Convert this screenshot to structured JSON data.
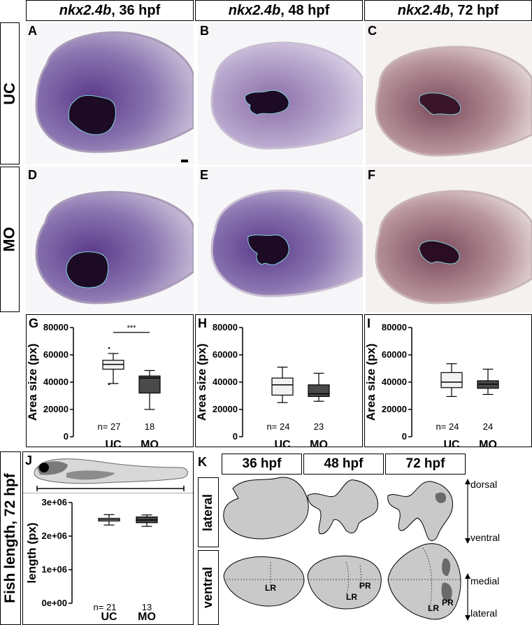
{
  "headers": [
    {
      "gene": "nkx2.4b",
      "stage": ", 36 hpf"
    },
    {
      "gene": "nkx2.4b",
      "stage": ", 48 hpf"
    },
    {
      "gene": "nkx2.4b",
      "stage": ", 72 hpf"
    }
  ],
  "row_labels": {
    "uc": "UC",
    "mo": "MO"
  },
  "panel_letters": {
    "A": "A",
    "B": "B",
    "C": "C",
    "D": "D",
    "E": "E",
    "F": "F",
    "G": "G",
    "H": "H",
    "I": "I",
    "J": "J",
    "K": "K"
  },
  "chart_data": [
    {
      "type": "box",
      "panel": "G",
      "ylabel": "Area size (px)",
      "ylim": [
        0,
        80000
      ],
      "yticks": [
        "0",
        "20000",
        "40000",
        "60000",
        "80000"
      ],
      "categories": [
        "UC",
        "MO"
      ],
      "n": [
        "n= 27",
        "18"
      ],
      "series": [
        {
          "name": "UC",
          "min": 39000,
          "q1": 49500,
          "median": 53000,
          "q3": 56000,
          "max": 61000,
          "outliers": [
            65000,
            38500
          ],
          "color": "#f2f2f2"
        },
        {
          "name": "MO",
          "min": 20000,
          "q1": 32000,
          "median": 43000,
          "q3": 44500,
          "max": 48500,
          "outliers": [],
          "color": "#4a4a4a"
        }
      ],
      "significance": "***"
    },
    {
      "type": "box",
      "panel": "H",
      "ylabel": "Area size (px)",
      "ylim": [
        0,
        80000
      ],
      "yticks": [
        "0",
        "20000",
        "40000",
        "60000",
        "80000"
      ],
      "categories": [
        "UC",
        "MO"
      ],
      "n": [
        "n= 24",
        "23"
      ],
      "series": [
        {
          "name": "UC",
          "min": 25000,
          "q1": 30500,
          "median": 38000,
          "q3": 43000,
          "max": 51000,
          "outliers": [],
          "color": "#f2f2f2"
        },
        {
          "name": "MO",
          "min": 26000,
          "q1": 29500,
          "median": 31500,
          "q3": 38000,
          "max": 46500,
          "outliers": [],
          "color": "#4a4a4a"
        }
      ]
    },
    {
      "type": "box",
      "panel": "I",
      "ylabel": "Area size (px)",
      "ylim": [
        0,
        80000
      ],
      "yticks": [
        "0",
        "20000",
        "40000",
        "60000",
        "80000"
      ],
      "categories": [
        "UC",
        "MO"
      ],
      "n": [
        "n= 24",
        "24"
      ],
      "series": [
        {
          "name": "UC",
          "min": 29500,
          "q1": 36000,
          "median": 40000,
          "q3": 47000,
          "max": 53500,
          "outliers": [],
          "color": "#f2f2f2"
        },
        {
          "name": "MO",
          "min": 31000,
          "q1": 35500,
          "median": 38500,
          "q3": 41000,
          "max": 49500,
          "outliers": [],
          "color": "#4a4a4a"
        }
      ]
    },
    {
      "type": "box",
      "panel": "J",
      "ylabel": "length (px)",
      "ylim": [
        0,
        3000000
      ],
      "yticks": [
        "0e+00",
        "1e+06",
        "2e+06",
        "3e+06"
      ],
      "categories": [
        "UC",
        "MO"
      ],
      "n": [
        "n= 21",
        "13"
      ],
      "series": [
        {
          "name": "UC",
          "min": 2330000,
          "q1": 2450000,
          "median": 2490000,
          "q3": 2530000,
          "max": 2640000,
          "outliers": [],
          "color": "#ffffff"
        },
        {
          "name": "MO",
          "min": 2290000,
          "q1": 2400000,
          "median": 2480000,
          "q3": 2570000,
          "max": 2630000,
          "outliers": [],
          "color": "#4a4a4a"
        }
      ]
    }
  ],
  "j_title": "Fish length, 72 hpf",
  "k_headers": [
    "36 hpf",
    "48 hpf",
    "72 hpf"
  ],
  "k_rows": [
    "lateral",
    "ventral"
  ],
  "k_axes": {
    "dorsal": "dorsal",
    "ventral": "ventral",
    "medial": "medial",
    "lateral": "lateral"
  },
  "k_labels": {
    "lr": "LR",
    "pr": "PR"
  }
}
